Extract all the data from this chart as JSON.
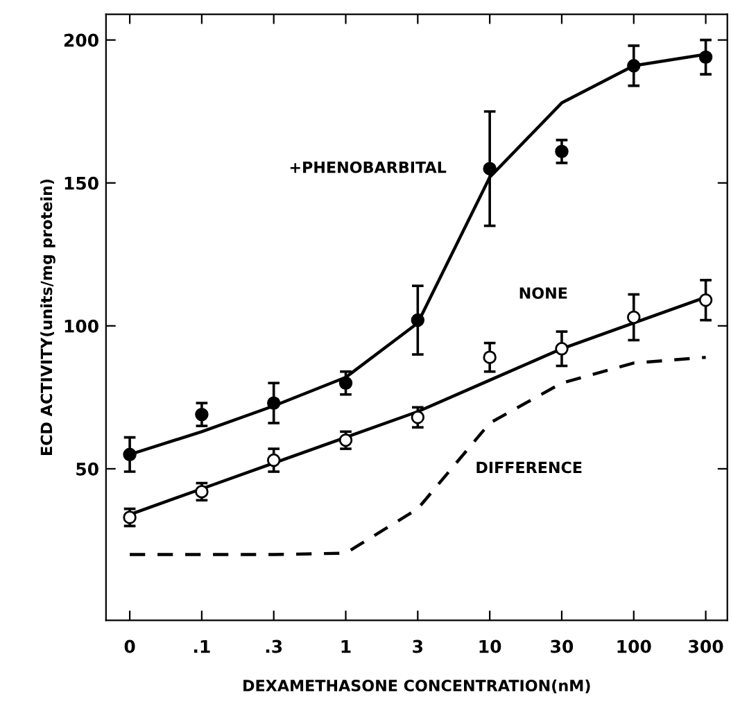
{
  "chart_data": {
    "type": "scatter",
    "xlabel": "DEXAMETHASONE CONCENTRATION(nM)",
    "ylabel": "ECD ACTIVITY(units/mg protein)",
    "categories": [
      "0",
      ".1",
      ".3",
      "1",
      "3",
      "10",
      "30",
      "100",
      "300"
    ],
    "series": [
      {
        "name": "+PHENOBARBITAL",
        "marker": "circle",
        "color": "#000000",
        "values": [
          55,
          69,
          73,
          80,
          102,
          155,
          161,
          191,
          194
        ],
        "errors": [
          6,
          4,
          7,
          4,
          12,
          20,
          4,
          7,
          6
        ]
      },
      {
        "name": "NONE",
        "marker": "circle",
        "color": "#ffffff",
        "values": [
          33,
          42,
          53,
          60,
          68,
          89,
          92,
          103,
          109
        ],
        "errors": [
          3,
          3,
          4,
          3,
          3.5,
          5,
          6,
          8,
          7
        ]
      },
      {
        "type": "line",
        "line_style": "solid",
        "color": "#000000",
        "values": [
          55,
          63,
          72,
          82,
          101,
          152,
          178,
          191,
          195
        ]
      },
      {
        "type": "line",
        "line_style": "solid",
        "color": "#000000",
        "values": [
          34,
          43,
          52,
          61,
          70,
          81,
          92,
          101,
          110
        ]
      },
      {
        "name": "DIFFERENCE",
        "type": "line",
        "line_style": "dashed",
        "color": "#000000",
        "values": [
          20,
          20,
          20,
          20.5,
          36,
          66,
          80,
          87,
          89
        ]
      }
    ],
    "ylim": [
      -3,
      209
    ],
    "yticks": [
      50,
      100,
      150,
      200
    ],
    "grid": false,
    "legend": false
  }
}
